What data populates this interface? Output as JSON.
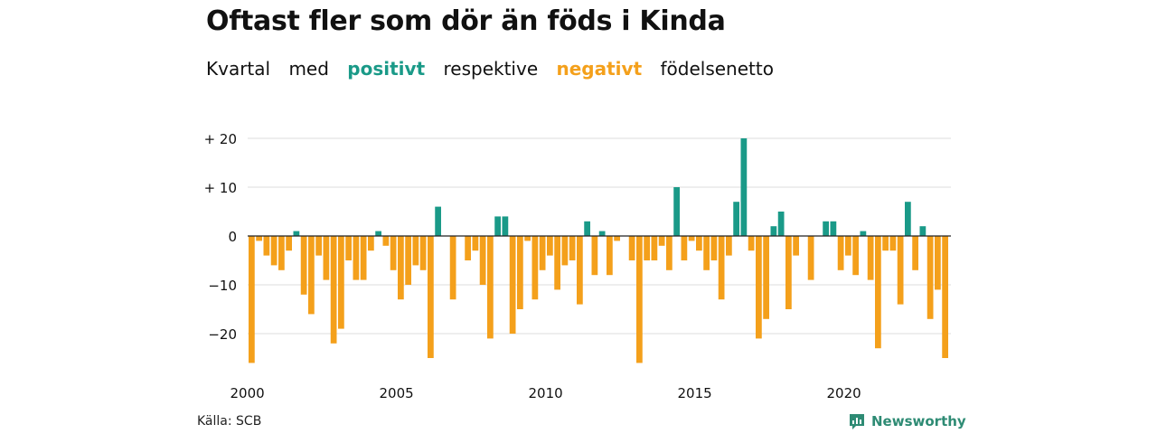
{
  "title": "Oftast fler som dör än föds i Kinda",
  "subtitle": {
    "w1": "Kvartal",
    "w2": "med",
    "positive_word": "positivt",
    "w3": "respektive",
    "negative_word": "negativt",
    "w4": "födelsenetto"
  },
  "colors": {
    "positive": "#1a9a88",
    "negative": "#f4a01b",
    "grid": "#dddddd",
    "zero": "#222222",
    "text": "#111111"
  },
  "source": "Källa: SCB",
  "brand": {
    "name": "Newsworthy",
    "icon": "newsworthy-logo-icon"
  },
  "chart_data": {
    "type": "bar",
    "title": "Oftast fler som dör än föds i Kinda",
    "xlabel": "",
    "ylabel": "",
    "ylim": [
      -27,
      21
    ],
    "yticks": [
      20,
      10,
      0,
      -10,
      -20
    ],
    "ytick_labels": [
      "+ 20",
      "+ 10",
      "0",
      "−10",
      "−20"
    ],
    "x_start_year": 2000,
    "xticks": [
      2000,
      2005,
      2010,
      2015,
      2020
    ],
    "xtick_labels": [
      "2000",
      "2005",
      "2010",
      "2015",
      "2020"
    ],
    "grid": true,
    "series": [
      {
        "values": [
          -26,
          -1,
          -4,
          -6,
          -7,
          -3,
          1,
          -12,
          -16,
          -4,
          -9,
          -22,
          -19,
          -5,
          -9,
          -9,
          -3,
          1,
          -2,
          -7,
          -13,
          -10,
          -6,
          -7,
          -25,
          6,
          0,
          -13,
          0,
          -5,
          -3,
          -10,
          -21,
          4,
          4,
          -20,
          -15,
          -1,
          -13,
          -7,
          -4,
          -11,
          -6,
          -5,
          -14,
          3,
          -8,
          1,
          -8,
          -1,
          0,
          -5,
          -26,
          -5,
          -5,
          -2,
          -7,
          10,
          -5,
          -1,
          -3,
          -7,
          -5,
          -13,
          -4,
          7,
          20,
          -3,
          -21,
          -17,
          2,
          5,
          -15,
          -4,
          0,
          -9,
          0,
          3,
          3,
          -7,
          -4,
          -8,
          1,
          -9,
          -23,
          -3,
          -3,
          -14,
          7,
          -7,
          2,
          -17,
          -11,
          -25
        ]
      }
    ]
  }
}
